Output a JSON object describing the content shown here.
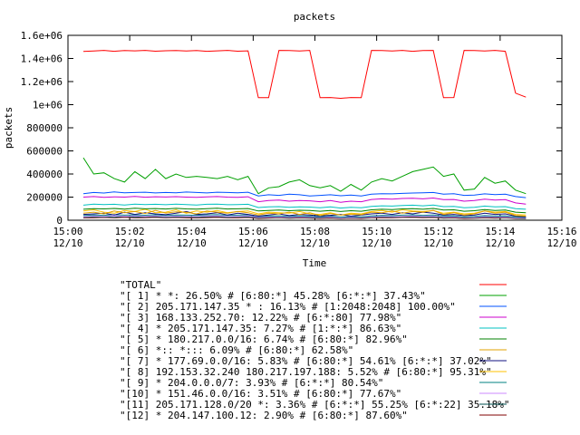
{
  "chart_data": {
    "type": "line",
    "title": "packets",
    "xlabel": "Time",
    "ylabel": "packets",
    "ylim": [
      0,
      1600000
    ],
    "xlim": [
      "15:00",
      "15:16"
    ],
    "grid": false,
    "legend_position": "bottom",
    "x_ticks": [
      {
        "time": "15:00",
        "line1": "15:00",
        "line2": "12/10"
      },
      {
        "time": "15:02",
        "line1": "15:02",
        "line2": "12/10"
      },
      {
        "time": "15:04",
        "line1": "15:04",
        "line2": "12/10"
      },
      {
        "time": "15:06",
        "line1": "15:06",
        "line2": "12/10"
      },
      {
        "time": "15:08",
        "line1": "15:08",
        "line2": "12/10"
      },
      {
        "time": "15:10",
        "line1": "15:10",
        "line2": "12/10"
      },
      {
        "time": "15:12",
        "line1": "15:12",
        "line2": "12/10"
      },
      {
        "time": "15:14",
        "line1": "15:14",
        "line2": "12/10"
      },
      {
        "time": "15:16",
        "line1": "15:16",
        "line2": "12/10"
      }
    ],
    "y_ticks": [
      {
        "value": 0,
        "label": "0"
      },
      {
        "value": 200000,
        "label": "200000"
      },
      {
        "value": 400000,
        "label": "400000"
      },
      {
        "value": 600000,
        "label": "600000"
      },
      {
        "value": 800000,
        "label": "800000"
      },
      {
        "value": 1000000,
        "label": "1e+06"
      },
      {
        "value": 1200000,
        "label": "1.2e+06"
      },
      {
        "value": 1400000,
        "label": "1.4e+06"
      },
      {
        "value": 1600000,
        "label": "1.6e+06"
      }
    ],
    "x": [
      "15:00:30",
      "15:00:50",
      "15:01:10",
      "15:01:30",
      "15:01:50",
      "15:02:10",
      "15:02:30",
      "15:02:50",
      "15:03:10",
      "15:03:30",
      "15:03:50",
      "15:04:10",
      "15:04:30",
      "15:04:50",
      "15:05:10",
      "15:05:30",
      "15:05:50",
      "15:06:10",
      "15:06:30",
      "15:06:50",
      "15:07:10",
      "15:07:30",
      "15:07:50",
      "15:08:10",
      "15:08:30",
      "15:08:50",
      "15:09:10",
      "15:09:30",
      "15:09:50",
      "15:10:10",
      "15:10:30",
      "15:10:50",
      "15:11:10",
      "15:11:30",
      "15:11:50",
      "15:12:10",
      "15:12:30",
      "15:12:50",
      "15:13:10",
      "15:13:30",
      "15:13:50",
      "15:14:10",
      "15:14:30",
      "15:14:50"
    ],
    "series": [
      {
        "name": "\"TOTAL\"",
        "color": "#ff0000",
        "values": [
          1460000,
          1465000,
          1470000,
          1462000,
          1468000,
          1466000,
          1470000,
          1463000,
          1467000,
          1469000,
          1465000,
          1468000,
          1462000,
          1466000,
          1470000,
          1463000,
          1466000,
          1060000,
          1060000,
          1470000,
          1468000,
          1465000,
          1470000,
          1060000,
          1062000,
          1055000,
          1062000,
          1060000,
          1470000,
          1468000,
          1465000,
          1470000,
          1462000,
          1468000,
          1470000,
          1060000,
          1062000,
          1470000,
          1468000,
          1465000,
          1470000,
          1462000,
          1100000,
          1065000
        ]
      },
      {
        "name": "\"[ 1] * *: 26.50% # [6:80:*] 45.28% [6:*:*] 37.43%\"",
        "color": "#00a000",
        "values": [
          540000,
          400000,
          410000,
          360000,
          330000,
          420000,
          360000,
          440000,
          360000,
          400000,
          370000,
          380000,
          370000,
          360000,
          380000,
          350000,
          380000,
          230000,
          280000,
          290000,
          330000,
          350000,
          300000,
          280000,
          300000,
          250000,
          310000,
          260000,
          330000,
          360000,
          340000,
          380000,
          420000,
          440000,
          460000,
          380000,
          400000,
          260000,
          270000,
          370000,
          320000,
          340000,
          260000,
          230000
        ]
      },
      {
        "name": "\"[ 2] 205.171.147.35 * : 16.13% # [1:2048:2048] 100.00%\"",
        "color": "#0050ff",
        "values": [
          230000,
          240000,
          235000,
          245000,
          238000,
          240000,
          242000,
          236000,
          240000,
          238000,
          244000,
          240000,
          236000,
          242000,
          240000,
          238000,
          242000,
          210000,
          220000,
          215000,
          225000,
          220000,
          210000,
          215000,
          220000,
          212000,
          218000,
          210000,
          225000,
          230000,
          228000,
          232000,
          235000,
          238000,
          240000,
          225000,
          230000,
          215000,
          218000,
          228000,
          222000,
          225000,
          205000,
          195000
        ]
      },
      {
        "name": "\"[ 3] 168.133.252.70: 12.22% # [6:*:80] 77.98%\"",
        "color": "#cc00cc",
        "values": [
          200000,
          205000,
          198000,
          202000,
          200000,
          206000,
          199000,
          203000,
          201000,
          204000,
          200000,
          198000,
          202000,
          205000,
          200000,
          198000,
          203000,
          160000,
          170000,
          175000,
          165000,
          170000,
          168000,
          160000,
          170000,
          155000,
          165000,
          160000,
          180000,
          185000,
          182000,
          188000,
          190000,
          185000,
          192000,
          178000,
          180000,
          165000,
          170000,
          182000,
          175000,
          178000,
          150000,
          140000
        ]
      },
      {
        "name": "\"[ 4] * 205.171.147.35: 7.27% # [1:*:*] 86.63%\"",
        "color": "#00c0c0",
        "values": [
          130000,
          140000,
          135000,
          138000,
          132000,
          140000,
          136000,
          138000,
          134000,
          140000,
          136000,
          132000,
          138000,
          140000,
          134000,
          136000,
          138000,
          110000,
          115000,
          118000,
          112000,
          116000,
          114000,
          108000,
          115000,
          105000,
          112000,
          108000,
          120000,
          125000,
          122000,
          128000,
          130000,
          125000,
          132000,
          118000,
          120000,
          108000,
          112000,
          122000,
          115000,
          118000,
          100000,
          95000
        ]
      },
      {
        "name": "\"[ 5] * 180.217.0.0/16: 6.74% # [6:80:*] 82.96%\"",
        "color": "#008000",
        "values": [
          95000,
          100000,
          98000,
          102000,
          96000,
          104000,
          99000,
          101000,
          97000,
          103000,
          98000,
          96000,
          100000,
          104000,
          97000,
          99000,
          101000,
          80000,
          85000,
          88000,
          82000,
          86000,
          84000,
          78000,
          85000,
          75000,
          82000,
          78000,
          90000,
          95000,
          92000,
          98000,
          100000,
          95000,
          102000,
          88000,
          90000,
          78000,
          82000,
          92000,
          85000,
          88000,
          70000,
          65000
        ]
      },
      {
        "name": "\"[ 6] *:: *::: 6.09% # [6:80:*] 62.58%\"",
        "color": "#e0a000",
        "values": [
          60000,
          70000,
          55000,
          80000,
          65000,
          75000,
          58000,
          85000,
          62000,
          72000,
          68000,
          55000,
          80000,
          70000,
          60000,
          75000,
          65000,
          45000,
          60000,
          55000,
          70000,
          50000,
          65000,
          40000,
          58000,
          45000,
          52000,
          48000,
          70000,
          65000,
          80000,
          60000,
          75000,
          70000,
          85000,
          50000,
          65000,
          45000,
          55000,
          80000,
          60000,
          70000,
          40000,
          35000
        ]
      },
      {
        "name": "\"[ 7] * 177.69.0.0/16: 5.83% # [6:80:*] 54.61% [6:*:*] 37.02%\"",
        "color": "#101080",
        "values": [
          50000,
          55000,
          60000,
          45000,
          70000,
          50000,
          65000,
          55000,
          48000,
          60000,
          75000,
          50000,
          55000,
          65000,
          45000,
          60000,
          50000,
          35000,
          45000,
          55000,
          40000,
          50000,
          45000,
          38000,
          42000,
          50000,
          35000,
          45000,
          55000,
          60000,
          50000,
          65000,
          55000,
          70000,
          60000,
          45000,
          50000,
          40000,
          45000,
          60000,
          50000,
          55000,
          35000,
          30000
        ]
      },
      {
        "name": "\"[ 8] 192.153.32.240 180.217.197.188: 5.52% # [6:80:*] 95.31%\"",
        "color": "#ffc000",
        "values": [
          80000,
          90000,
          70000,
          60000,
          85000,
          75000,
          95000,
          65000,
          70000,
          90000,
          60000,
          80000,
          70000,
          85000,
          65000,
          75000,
          80000,
          55000,
          70000,
          65000,
          60000,
          75000,
          55000,
          50000,
          65000,
          45000,
          60000,
          55000,
          75000,
          85000,
          70000,
          90000,
          80000,
          75000,
          85000,
          60000,
          70000,
          55000,
          60000,
          80000,
          70000,
          75000,
          50000,
          45000
        ]
      },
      {
        "name": "\"[ 9] * 204.0.0.0/7: 3.93% # [6:*:*] 80.54%\"",
        "color": "#008080",
        "values": [
          40000,
          45000,
          42000,
          48000,
          44000,
          46000,
          43000,
          47000,
          41000,
          45000,
          44000,
          42000,
          46000,
          48000,
          42000,
          44000,
          46000,
          32000,
          36000,
          38000,
          34000,
          37000,
          35000,
          30000,
          36000,
          28000,
          33000,
          30000,
          38000,
          42000,
          40000,
          44000,
          46000,
          42000,
          45000,
          36000,
          38000,
          30000,
          33000,
          40000,
          36000,
          38000,
          28000,
          25000
        ]
      },
      {
        "name": "\"[10] * 151.46.0.0/16: 3.51% # [6:80:*] 77.67%\"",
        "color": "#cc88ff",
        "values": [
          30000,
          35000,
          32000,
          38000,
          34000,
          36000,
          33000,
          37000,
          31000,
          35000,
          34000,
          32000,
          36000,
          38000,
          32000,
          34000,
          36000,
          25000,
          28000,
          30000,
          27000,
          29000,
          28000,
          24000,
          28000,
          22000,
          26000,
          24000,
          30000,
          33000,
          31000,
          34000,
          36000,
          33000,
          35000,
          28000,
          30000,
          24000,
          26000,
          31000,
          28000,
          30000,
          22000,
          20000
        ]
      },
      {
        "name": "\"[11] 205.171.128.0/20 *: 3.36% # [6:*:*] 55.25% [6:*:22] 35.18%\"",
        "color": "#005050",
        "values": [
          25000,
          28000,
          30000,
          26000,
          32000,
          27000,
          29000,
          31000,
          26000,
          30000,
          28000,
          25000,
          29000,
          32000,
          26000,
          28000,
          30000,
          20000,
          24000,
          26000,
          22000,
          25000,
          23000,
          20000,
          24000,
          18000,
          22000,
          20000,
          26000,
          28000,
          27000,
          29000,
          31000,
          28000,
          30000,
          23000,
          25000,
          20000,
          22000,
          27000,
          24000,
          26000,
          18000,
          16000
        ]
      },
      {
        "name": "\"[12] * 204.147.100.12: 2.90% # [6:80:*] 87.60%\"",
        "color": "#800000",
        "values": [
          20000,
          22000,
          24000,
          21000,
          26000,
          22000,
          23000,
          25000,
          21000,
          24000,
          22000,
          20000,
          23000,
          26000,
          21000,
          22000,
          24000,
          16000,
          19000,
          21000,
          18000,
          20000,
          19000,
          16000,
          19000,
          15000,
          18000,
          16000,
          21000,
          23000,
          22000,
          24000,
          25000,
          23000,
          24000,
          19000,
          20000,
          16000,
          18000,
          22000,
          19000,
          21000,
          15000,
          13000
        ]
      }
    ]
  }
}
